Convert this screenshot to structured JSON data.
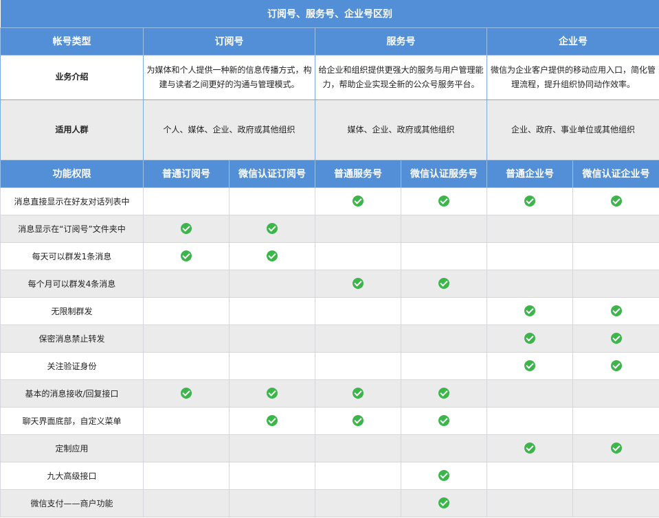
{
  "title": "订阅号、服务号、企业号区别",
  "header": {
    "account_type": "帐号类型",
    "types": [
      "订阅号",
      "服务号",
      "企业号"
    ]
  },
  "intro": {
    "label": "业务介绍",
    "values": [
      "为媒体和个人提供一种新的信息传播方式，构建与读者之间更好的沟通与管理模式。",
      "给企业和组织提供更强大的服务与用户管理能力，帮助企业实现全新的公众号服务平台。",
      "微信为企业客户提供的移动应用入口，简化管理流程，提升组织协同动作效率。"
    ]
  },
  "target": {
    "label": "适用人群",
    "values": [
      "个人、媒体、企业、政府或其他组织",
      "媒体、企业、政府或其他组织",
      "企业、政府、事业单位或其他组织"
    ]
  },
  "features_header": {
    "label": "功能权限",
    "columns": [
      "普通订阅号",
      "微信认证订阅号",
      "普通服务号",
      "微信认证服务号",
      "普通企业号",
      "微信认证企业号"
    ]
  },
  "check_icon": "check-circle-icon",
  "colors": {
    "header": "#528fd6",
    "check": "#3cb54a",
    "alt_row": "#ebebeb"
  },
  "features": [
    {
      "name": "消息直接显示在好友对话列表中",
      "support": [
        false,
        false,
        true,
        true,
        true,
        true
      ]
    },
    {
      "name": "消息显示在“订阅号”文件夹中",
      "support": [
        true,
        true,
        false,
        false,
        false,
        false
      ]
    },
    {
      "name": "每天可以群发1条消息",
      "support": [
        true,
        true,
        false,
        false,
        false,
        false
      ]
    },
    {
      "name": "每个月可以群发4条消息",
      "support": [
        false,
        false,
        true,
        true,
        false,
        false
      ]
    },
    {
      "name": "无限制群发",
      "support": [
        false,
        false,
        false,
        false,
        true,
        true
      ]
    },
    {
      "name": "保密消息禁止转发",
      "support": [
        false,
        false,
        false,
        false,
        true,
        true
      ]
    },
    {
      "name": "关注验证身份",
      "support": [
        false,
        false,
        false,
        false,
        true,
        true
      ]
    },
    {
      "name": "基本的消息接收/回复接口",
      "support": [
        true,
        true,
        true,
        true,
        false,
        false
      ]
    },
    {
      "name": "聊天界面底部，自定义菜单",
      "support": [
        false,
        true,
        true,
        true,
        false,
        false
      ]
    },
    {
      "name": "定制应用",
      "support": [
        false,
        false,
        false,
        false,
        true,
        true
      ]
    },
    {
      "name": "九大高级接口",
      "support": [
        false,
        false,
        false,
        true,
        false,
        false
      ]
    },
    {
      "name": "微信支付——商户功能",
      "support": [
        false,
        false,
        false,
        true,
        false,
        false
      ]
    }
  ]
}
